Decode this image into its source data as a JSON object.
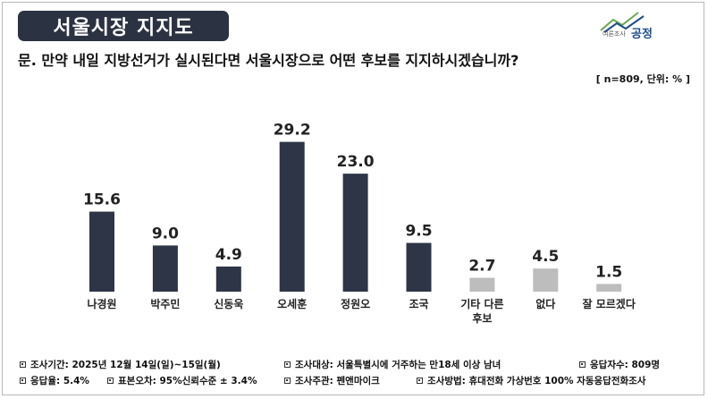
{
  "header": {
    "title": "서울시장 지지도",
    "question": "문. 만약 내일 지방선거가 실시된다면 서울시장으로 어떤 후보를 지지하시겠습니까?",
    "sample_note": "[ n=809, 단위: % ]"
  },
  "logo": {
    "small_text": "여론조사",
    "big_text": "공정"
  },
  "colors": {
    "title_bg": "#2b3242",
    "bar_dark": "#2d3546",
    "bar_gray": "#bdbdbd",
    "logo_blue": "#1f4e8c",
    "logo_green": "#6aa84f"
  },
  "chart_data": {
    "type": "bar",
    "categories": [
      "나경원",
      "박주민",
      "신동욱",
      "오세훈",
      "정원오",
      "조국",
      "기타 다른 후보",
      "없다",
      "잘 모르겠다"
    ],
    "category_lines": [
      [
        "나경원"
      ],
      [
        "박주민"
      ],
      [
        "신동욱"
      ],
      [
        "오세훈"
      ],
      [
        "정원오"
      ],
      [
        "조국"
      ],
      [
        "기타 다른",
        "후보"
      ],
      [
        "없다"
      ],
      [
        "잘 모르겠다"
      ]
    ],
    "values": [
      15.6,
      9.0,
      4.9,
      29.2,
      23.0,
      9.5,
      2.7,
      4.5,
      1.5
    ],
    "value_labels": [
      "15.6",
      "9.0",
      "4.9",
      "29.2",
      "23.0",
      "9.5",
      "2.7",
      "4.5",
      "1.5"
    ],
    "highlight": [
      true,
      true,
      true,
      true,
      true,
      true,
      false,
      false,
      false
    ],
    "ylim": [
      0,
      30
    ],
    "grid": false,
    "unit": "%"
  },
  "footer": {
    "row1": [
      "조사기간: 2025년 12월 14일(일)~15일(월)",
      "조사대상: 서울특별시에 거주하는 만18세 이상 남녀",
      "응답자수: 809명"
    ],
    "row2": [
      "응답율: 5.4%",
      "표본오차: 95%신뢰수준 ± 3.4%",
      "조사주관: 펜앤마이크",
      "조사방법: 휴대전화 가상번호 100% 자동응답전화조사"
    ]
  }
}
